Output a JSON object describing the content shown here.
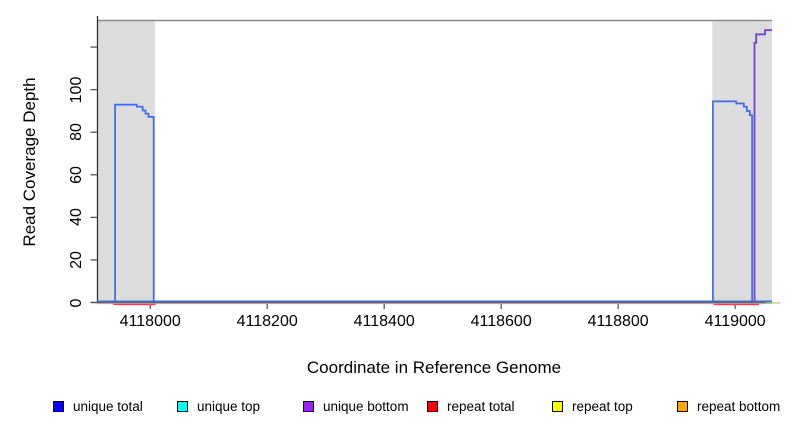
{
  "chart_data": {
    "type": "line",
    "title": "",
    "xlabel": "Coordinate in Reference Genome",
    "ylabel": "Read Coverage Depth",
    "xlim": [
      4117909,
      4119063
    ],
    "ylim": [
      0,
      132.5
    ],
    "x_ticks": [
      4118000,
      4118200,
      4118400,
      4118600,
      4118800,
      4119000
    ],
    "x_tick_labels": [
      "4118000",
      "4118200",
      "4118400",
      "4118600",
      "4118800",
      "4119000"
    ],
    "y_ticks": [
      0,
      20,
      40,
      60,
      80,
      100,
      120
    ],
    "y_tick_labels": [
      "0",
      "20",
      "40",
      "60",
      "80",
      "100",
      ""
    ],
    "grid": false,
    "shaded_regions": [
      {
        "name": "left-gray-band",
        "x0": 4117911,
        "x1": 4118008
      },
      {
        "name": "right-gray-band",
        "x0": 4118961,
        "x1": 4119063
      }
    ],
    "series": [
      {
        "name": "baseline-lavender",
        "color": "#b3a1e6",
        "width": 1.4,
        "points": [
          [
            4117909,
            -0.4
          ],
          [
            4119063,
            -0.4
          ]
        ]
      },
      {
        "name": "repeat-total-left-baseline",
        "color": "#e84150",
        "width": 1.4,
        "points": [
          [
            4117937,
            -0.9
          ],
          [
            4118009,
            -0.9
          ]
        ]
      },
      {
        "name": "repeat-total-right-baseline",
        "color": "#e84150",
        "width": 1.4,
        "points": [
          [
            4118963,
            -0.9
          ],
          [
            4119041,
            -0.9
          ]
        ]
      },
      {
        "name": "green-right-baseline",
        "color": "#a5d392",
        "width": 1.4,
        "points": [
          [
            4119052,
            -0.2
          ],
          [
            4119077,
            -0.2
          ]
        ]
      },
      {
        "name": "unique-baseline-blue",
        "color": "#3a6aef",
        "width": 1.5,
        "points": [
          [
            4117909,
            0.6
          ],
          [
            4119063,
            0.6
          ]
        ]
      },
      {
        "name": "unique-top-left-peak",
        "color": "#3a6aef",
        "width": 1.7,
        "points": [
          [
            4117940,
            0.6
          ],
          [
            4117940,
            93
          ],
          [
            4117977,
            93
          ],
          [
            4117977,
            92
          ],
          [
            4117987,
            92
          ],
          [
            4117987,
            90.2
          ],
          [
            4117992,
            90.2
          ],
          [
            4117992,
            88.7
          ],
          [
            4117997,
            88.7
          ],
          [
            4117997,
            87.2
          ],
          [
            4118006,
            87.2
          ],
          [
            4118006,
            0.6
          ]
        ]
      },
      {
        "name": "unique-top-right-peak",
        "color": "#3a6aef",
        "width": 1.7,
        "points": [
          [
            4118962,
            0.6
          ],
          [
            4118962,
            94.5
          ],
          [
            4119002,
            94.5
          ],
          [
            4119002,
            93.5
          ],
          [
            4119015,
            93.5
          ],
          [
            4119015,
            92
          ],
          [
            4119020,
            92
          ],
          [
            4119020,
            90
          ],
          [
            4119025,
            90
          ],
          [
            4119025,
            88
          ],
          [
            4119029,
            88
          ],
          [
            4119029,
            0.6
          ]
        ]
      },
      {
        "name": "unique-bottom-right-peak",
        "color": "#7040dc",
        "width": 1.8,
        "points": [
          [
            4119033,
            0.6
          ],
          [
            4119033,
            122
          ],
          [
            4119036,
            122
          ],
          [
            4119036,
            126
          ],
          [
            4119051,
            126
          ],
          [
            4119051,
            128
          ],
          [
            4119063,
            128
          ]
        ]
      }
    ],
    "legend": [
      {
        "label": "unique total",
        "color": "#0000FF"
      },
      {
        "label": "unique top",
        "color": "#00FFFF"
      },
      {
        "label": "unique bottom",
        "color": "#A020F0"
      },
      {
        "label": "repeat total",
        "color": "#FF0000"
      },
      {
        "label": "repeat top",
        "color": "#FFFF00"
      },
      {
        "label": "repeat bottom",
        "color": "#FFA500"
      }
    ],
    "legend_position": "bottom",
    "colors": {
      "shaded_band": "#dcdcdc",
      "plot_top_border": "#8c8c8c",
      "axis_line": "#2f2f2f",
      "tick": "#4a4a4a"
    }
  }
}
